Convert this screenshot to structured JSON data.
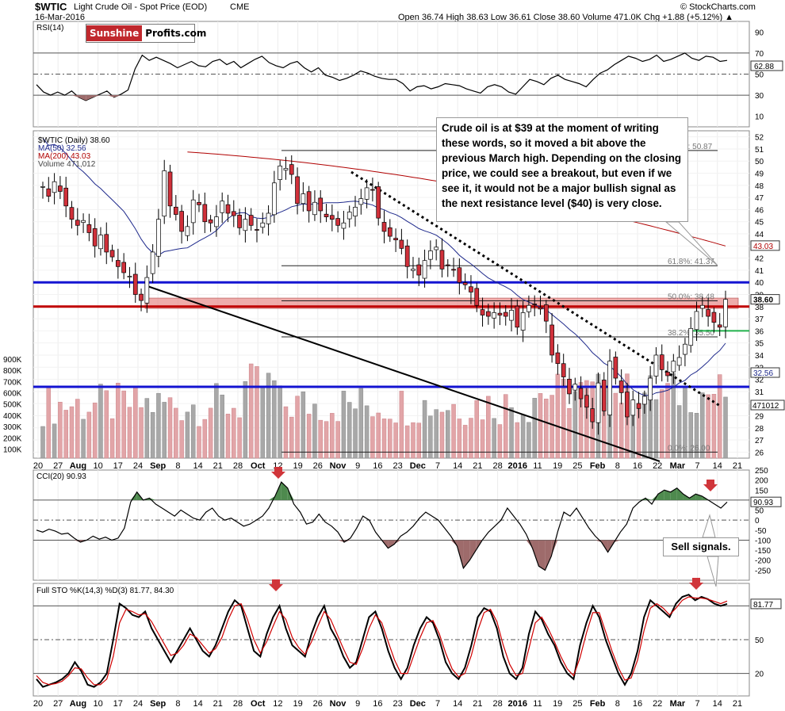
{
  "header": {
    "symbol": "$WTIC",
    "description": "Light Crude Oil - Spot Price (EOD)",
    "exchange": "CME",
    "date": "16-Mar-2016",
    "ohlc": "Open 36.74  High 38.63  Low 36.61  Close 38.60  Volume 471.0K  Chg +1.88 (+5.12%) ▲",
    "source": "© StockCharts.com"
  },
  "logo": {
    "part1": "Sunshine",
    "part2": "Profits.com"
  },
  "callout": "Crude oil is at $39 at the moment of writing these words, so it moved a bit above the previous March high. Depending on the closing price, we could see a breakout, but even if we see it, it would not be a major bullish signal as the next resistance level ($40) is very close.",
  "sell_label": "Sell signals.",
  "x_axis_labels": [
    "20",
    "27",
    "Aug",
    "10",
    "17",
    "24",
    "Sep",
    "8",
    "14",
    "21",
    "28",
    "Oct",
    "12",
    "19",
    "26",
    "Nov",
    "9",
    "16",
    "23",
    "Dec",
    "7",
    "14",
    "21",
    "28",
    "2016",
    "11",
    "19",
    "25",
    "Feb",
    "8",
    "16",
    "22",
    "Mar",
    "7",
    "14",
    "21"
  ],
  "colors": {
    "resistance_blue": "#1414d2",
    "support_red": "#c00000",
    "zone_fill": "#e8908f",
    "ma50": "#1f2a8c",
    "ma200": "#b00000",
    "green_line": "#22b14c",
    "candle_up": "#ffffff",
    "candle_down": "#d0303a",
    "volume_up": "#a8a8a8",
    "volume_down": "#e2a5a8",
    "neg_fill": "#9e6b6b",
    "pos_fill": "#4e8a4e"
  },
  "chart_data": [
    {
      "type": "line",
      "title": "RSI(14)",
      "ylim": [
        0,
        100
      ],
      "yticks": [
        90,
        70,
        50,
        30,
        10
      ],
      "last_value": "62.88",
      "values": [
        40,
        33,
        30,
        33,
        30,
        34,
        28,
        25,
        28,
        31,
        34,
        28,
        31,
        35,
        55,
        68,
        63,
        66,
        63,
        60,
        56,
        59,
        62,
        58,
        57,
        62,
        64,
        59,
        62,
        56,
        60,
        64,
        67,
        61,
        58,
        56,
        60,
        62,
        56,
        52,
        56,
        49,
        47,
        44,
        46,
        49,
        53,
        51,
        48,
        46,
        45,
        45,
        41,
        34,
        38,
        39,
        36,
        38,
        41,
        40,
        39,
        36,
        34,
        32,
        38,
        40,
        38,
        33,
        31,
        38,
        45,
        43,
        40,
        46,
        49,
        45,
        43,
        41,
        38,
        45,
        51,
        54,
        59,
        63,
        67,
        65,
        62,
        64,
        68,
        62,
        64,
        67,
        70,
        65,
        63,
        67,
        66,
        62,
        63
      ]
    },
    {
      "type": "candlestick",
      "title": "$WTIC Light Crude Oil - Spot Price (EOD) CME",
      "ylim": [
        25.5,
        52.5
      ],
      "yticks": [
        52,
        51,
        50,
        49,
        48,
        47,
        46,
        45,
        44,
        43,
        42,
        41,
        40,
        39,
        38,
        37,
        36,
        35,
        34,
        33,
        32,
        31,
        30,
        29,
        28,
        27,
        26
      ],
      "legend": [
        {
          "name": "$WTIC (Daily) 38.60",
          "color": "#000000"
        },
        {
          "name": "MA(50) 32.56",
          "color": "#1f2a8c"
        },
        {
          "name": "MA(200) 43.03",
          "color": "#b00000"
        },
        {
          "name": "Volume 471,012",
          "color": "#808080"
        }
      ],
      "closes": [
        47.9,
        47.1,
        48.3,
        47.5,
        46.3,
        45.2,
        44.7,
        45.1,
        44.1,
        43.0,
        43.9,
        42.5,
        42.1,
        41.3,
        40.8,
        40.5,
        39.0,
        38.5,
        40.4,
        42.5,
        45.2,
        49.2,
        46.3,
        45.6,
        44.2,
        44.6,
        46.8,
        46.4,
        45.0,
        44.9,
        45.4,
        46.7,
        45.7,
        45.5,
        44.5,
        45.2,
        44.7,
        44.3,
        44.9,
        45.7,
        48.2,
        49.6,
        49.4,
        48.9,
        46.5,
        47.3,
        45.9,
        46.6,
        45.9,
        45.4,
        45.2,
        44.7,
        44.9,
        45.8,
        46.2,
        46.9,
        47.8,
        47.6,
        45.3,
        44.2,
        43.8,
        43.5,
        42.8,
        41.3,
        41.1,
        40.6,
        41.8,
        42.6,
        42.9,
        41.1,
        41.4,
        41.0,
        40.0,
        39.8,
        39.2,
        38.1,
        37.3,
        37.2,
        37.5,
        37.3,
        37.2,
        37.7,
        36.3,
        37.5,
        38.1,
        38.2,
        37.8,
        36.8,
        34.0,
        33.3,
        32.2,
        30.8,
        31.6,
        30.4,
        29.7,
        28.5,
        31.7,
        29.4,
        33.5,
        32.1,
        30.9,
        28.9,
        30.3,
        29.6,
        30.6,
        32.1,
        34.0,
        32.8,
        32.3,
        33.5,
        33.8,
        34.9,
        36.2,
        37.6,
        38.1,
        37.2,
        36.7,
        36.3,
        38.6
      ],
      "ma50_last": 32.56,
      "ma200_last": 43.03,
      "annotations": [
        "38.48",
        "38.60",
        "36.30",
        "50.87",
        "43.03",
        "32.56"
      ],
      "fib_levels": [
        {
          "label": "61.8%: 41.37",
          "value": 41.37
        },
        {
          "label": "50.0%: 38.48",
          "value": 38.48
        },
        {
          "label": "38.2%: 35.50",
          "value": 35.5
        },
        {
          "label": "0.0%: 26.00",
          "value": 26.0
        },
        {
          "label": "100%: 50.87",
          "value": 50.87
        }
      ],
      "horizontal_lines": [
        {
          "value": 40.0,
          "color": "#1414d2"
        },
        {
          "value": 38.0,
          "color": "#c00000"
        },
        {
          "value": 36.0,
          "color": "#22b14c"
        }
      ]
    },
    {
      "type": "bar",
      "title": "Volume",
      "yticks": [
        "900K",
        "800K",
        "700K",
        "600K",
        "500K",
        "400K",
        "300K",
        "200K",
        "100K"
      ],
      "last_value": "471012"
    },
    {
      "type": "line",
      "title": "CCI(20) 90.93",
      "ylim": [
        -300,
        250
      ],
      "yticks": [
        250,
        200,
        150,
        100,
        50,
        0,
        -50,
        -100,
        -150,
        -200,
        -250
      ],
      "last_value": "90.93",
      "values": [
        -50,
        -60,
        -45,
        -55,
        -70,
        -65,
        -90,
        -110,
        -100,
        -80,
        -95,
        -85,
        -100,
        -90,
        -40,
        90,
        140,
        100,
        110,
        80,
        60,
        40,
        20,
        50,
        30,
        10,
        0,
        40,
        60,
        20,
        0,
        10,
        -10,
        -30,
        -20,
        0,
        20,
        60,
        120,
        190,
        160,
        80,
        40,
        -20,
        -10,
        30,
        -10,
        -30,
        -60,
        -110,
        -90,
        -40,
        20,
        0,
        -60,
        -100,
        -140,
        -120,
        -80,
        -60,
        -30,
        10,
        40,
        20,
        0,
        -40,
        -80,
        -130,
        -240,
        -200,
        -150,
        -100,
        -60,
        -30,
        0,
        60,
        20,
        -20,
        -70,
        -140,
        -230,
        -250,
        -180,
        -60,
        40,
        20,
        60,
        10,
        -40,
        -80,
        -110,
        -160,
        -110,
        -60,
        -20,
        60,
        90,
        110,
        80,
        130,
        150,
        140,
        160,
        130,
        110,
        130,
        120,
        100,
        80,
        60,
        90
      ]
    },
    {
      "type": "line",
      "title": "Full STO %K(14,3) %D(3) 81.77, 84.30",
      "ylim": [
        0,
        100
      ],
      "yticks": [
        80,
        50,
        20
      ],
      "last_value": "81.77",
      "series": [
        {
          "name": "%K",
          "values": [
            15,
            8,
            10,
            12,
            15,
            20,
            30,
            22,
            10,
            8,
            12,
            20,
            50,
            82,
            78,
            72,
            70,
            75,
            60,
            50,
            40,
            30,
            40,
            50,
            60,
            50,
            40,
            35,
            45,
            60,
            75,
            85,
            80,
            60,
            40,
            35,
            55,
            70,
            80,
            60,
            45,
            40,
            35,
            55,
            70,
            80,
            60,
            50,
            35,
            25,
            30,
            50,
            70,
            75,
            60,
            40,
            25,
            15,
            25,
            45,
            60,
            70,
            65,
            50,
            30,
            20,
            15,
            25,
            45,
            70,
            78,
            75,
            60,
            35,
            20,
            15,
            25,
            55,
            75,
            68,
            55,
            45,
            30,
            20,
            15,
            45,
            65,
            80,
            70,
            50,
            35,
            20,
            10,
            20,
            40,
            70,
            85,
            80,
            75,
            70,
            82,
            88,
            90,
            85,
            88,
            86,
            82,
            80,
            81.77
          ]
        },
        {
          "name": "%D",
          "values": [
            18,
            12,
            10,
            11,
            13,
            18,
            25,
            24,
            16,
            10,
            10,
            15,
            35,
            65,
            77,
            75,
            72,
            73,
            66,
            56,
            46,
            36,
            38,
            45,
            55,
            52,
            45,
            38,
            42,
            52,
            68,
            80,
            82,
            68,
            50,
            38,
            48,
            62,
            75,
            68,
            52,
            43,
            37,
            48,
            62,
            75,
            68,
            55,
            42,
            30,
            28,
            42,
            60,
            72,
            65,
            48,
            32,
            20,
            20,
            36,
            52,
            65,
            67,
            55,
            38,
            24,
            17,
            20,
            36,
            58,
            74,
            77,
            66,
            45,
            28,
            18,
            20,
            42,
            65,
            70,
            60,
            48,
            35,
            24,
            18,
            34,
            56,
            74,
            74,
            57,
            40,
            25,
            14,
            16,
            32,
            58,
            78,
            82,
            78,
            72,
            78,
            85,
            88,
            87,
            87,
            86,
            84,
            82,
            84.3
          ]
        }
      ]
    }
  ]
}
